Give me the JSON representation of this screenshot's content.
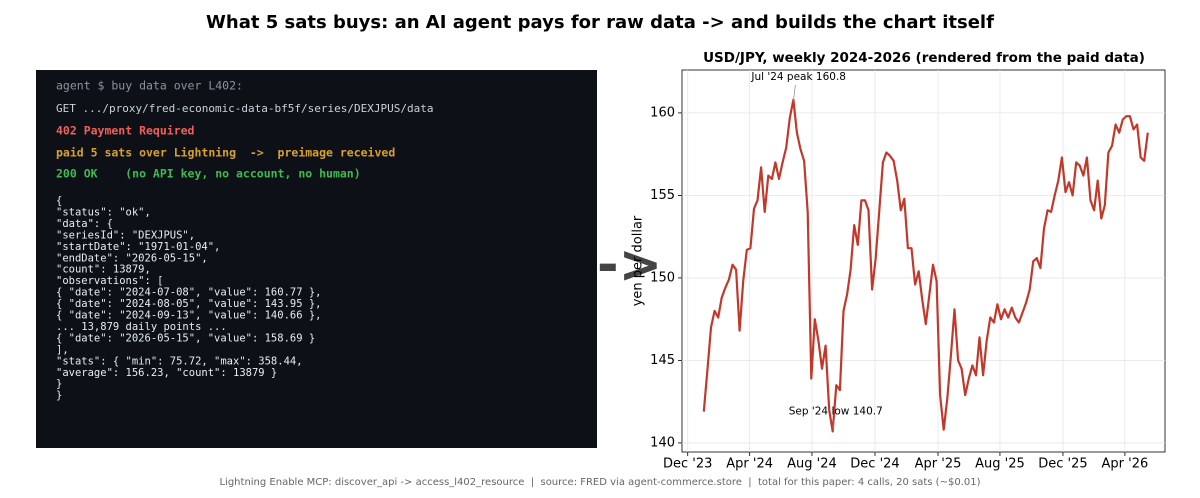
{
  "page_title": "What 5 sats buys: an AI agent pays for raw data  ->  and builds the chart itself",
  "terminal": {
    "prompt": "agent $ buy data over L402:",
    "request": "GET .../proxy/fred-economic-data-bf5f/series/DEXJPUS/data",
    "status_402": "402 Payment Required",
    "payment": "paid 5 sats over Lightning  ->  preimage received",
    "status_200": "200 OK    (no API key, no account, no human)",
    "json_lines": [
      "{",
      "  \"status\": \"ok\",",
      "  \"data\": {",
      "    \"seriesId\": \"DEXJPUS\",",
      "    \"startDate\": \"1971-01-04\",",
      "    \"endDate\":   \"2026-05-15\",",
      "    \"count\": 13879,",
      "    \"observations\": [",
      "      { \"date\": \"2024-07-08\", \"value\": 160.77 },",
      "      { \"date\": \"2024-08-05\", \"value\": 143.95 },",
      "      { \"date\": \"2024-09-13\", \"value\": 140.66 },",
      "      ... 13,879 daily points ...",
      "      { \"date\": \"2026-05-15\", \"value\": 158.69 }",
      "    ],",
      "    \"stats\": { \"min\": 75.72, \"max\": 358.44,",
      "               \"average\": 156.23, \"count\": 13879 }",
      "  }",
      "}"
    ]
  },
  "arrow": "->",
  "footer": "Lightning Enable MCP: discover_api -> access_l402_resource  |  source: FRED via agent-commerce.store  |  total for this paper: 4 calls, 20 sats (~$0.01)",
  "chart_data": {
    "type": "line",
    "title": "USD/JPY, weekly 2024-2026  (rendered from the paid data)",
    "y_label": "yen per dollar",
    "color": "#c0392b",
    "grid": true,
    "values": [
      141.9,
      144.4,
      147.0,
      148.0,
      147.6,
      148.8,
      149.4,
      149.9,
      150.8,
      150.5,
      146.8,
      149.8,
      151.7,
      151.8,
      154.2,
      154.7,
      156.7,
      154.0,
      156.2,
      156.0,
      157.0,
      156.0,
      157.0,
      157.9,
      159.7,
      160.8,
      158.8,
      157.8,
      157.1,
      154.0,
      143.9,
      147.5,
      146.2,
      144.5,
      145.9,
      142.0,
      140.7,
      143.5,
      143.2,
      148.0,
      149.0,
      150.5,
      153.2,
      152.0,
      154.7,
      154.7,
      154.1,
      149.3,
      151.2,
      154.1,
      157.0,
      157.6,
      157.4,
      157.1,
      155.9,
      154.1,
      154.8,
      151.8,
      151.8,
      149.6,
      150.4,
      148.7,
      147.2,
      149.0,
      150.8,
      149.8,
      142.9,
      140.8,
      142.7,
      145.3,
      148.1,
      145.0,
      144.5,
      142.9,
      143.9,
      144.7,
      144.1,
      146.4,
      144.1,
      146.2,
      147.6,
      147.3,
      148.4,
      147.5,
      148.1,
      147.6,
      148.2,
      147.6,
      147.3,
      147.9,
      148.5,
      149.3,
      151.0,
      151.2,
      150.6,
      153.0,
      154.1,
      154.0,
      155.0,
      155.9,
      157.3,
      155.2,
      155.8,
      155.0,
      157.0,
      156.8,
      156.2,
      157.3,
      154.7,
      154.1,
      155.9,
      153.6,
      154.4,
      157.6,
      158.0,
      159.3,
      158.8,
      159.6,
      159.8,
      159.8,
      159.0,
      159.3,
      157.3,
      157.1,
      158.8
    ],
    "xlim": [
      -6.1,
      128.8
    ],
    "xticks": [
      {
        "value": -4.5,
        "label": "Dec '23"
      },
      {
        "value": 12.8,
        "label": "Apr '24"
      },
      {
        "value": 30.2,
        "label": "Aug '24"
      },
      {
        "value": 47.8,
        "label": "Dec '24"
      },
      {
        "value": 65.4,
        "label": "Apr '25"
      },
      {
        "value": 82.7,
        "label": "Aug '25"
      },
      {
        "value": 100.3,
        "label": "Dec '25"
      },
      {
        "value": 117.6,
        "label": "Apr '26"
      }
    ],
    "ylim": [
      139.45,
      162.6
    ],
    "yticks": [
      140,
      145,
      150,
      155,
      160
    ],
    "annotations": [
      {
        "text": "Jul '24 peak 160.8",
        "index": 25,
        "value": 160.8
      },
      {
        "text": "Sep '24 low 140.7",
        "index": 36,
        "value": 140.7
      }
    ]
  }
}
